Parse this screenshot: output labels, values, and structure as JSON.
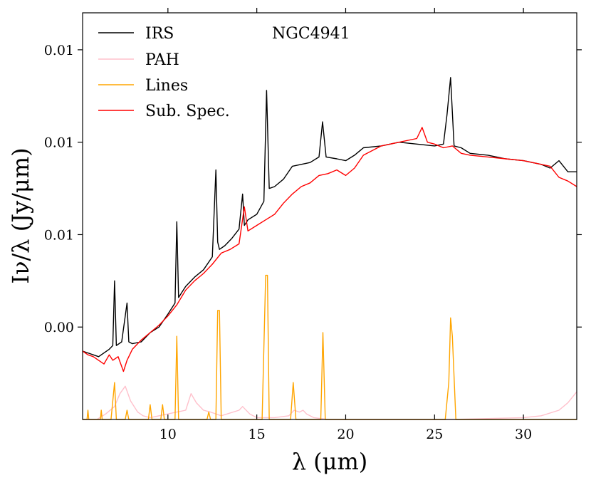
{
  "chart_data": {
    "type": "line",
    "title": "NGC4941",
    "xlabel": "λ (μm)",
    "ylabel": "Iν/λ (Jy/μm)",
    "xlim": [
      5.2,
      33.0
    ],
    "ylim": [
      -0.005,
      0.017
    ],
    "xticks": [
      10,
      15,
      20,
      25,
      30
    ],
    "yticks": [
      0.0,
      0.005,
      0.01,
      0.015
    ],
    "ytick_labels": [
      "0.00",
      "0.01",
      "0.01",
      "0.01"
    ],
    "legend": [
      "IRS",
      "PAH",
      "Lines",
      "Sub. Spec."
    ],
    "legend_position": "top-left",
    "colors": {
      "IRS": "#000000",
      "PAH": "#ffc0cb",
      "Lines": "#ffa500",
      "Sub. Spec.": "#ff0000"
    },
    "series": [
      {
        "name": "IRS",
        "x": [
          5.2,
          5.5,
          5.8,
          6.1,
          6.4,
          6.7,
          6.9,
          7.0,
          7.1,
          7.4,
          7.7,
          7.8,
          8.0,
          8.5,
          9.0,
          9.5,
          10.0,
          10.4,
          10.5,
          10.6,
          11.0,
          11.5,
          12.0,
          12.5,
          12.7,
          12.8,
          12.9,
          13.2,
          13.6,
          14.0,
          14.2,
          14.3,
          14.5,
          15.0,
          15.4,
          15.55,
          15.7,
          16.0,
          16.5,
          17.0,
          17.5,
          18.0,
          18.5,
          18.7,
          18.9,
          19.5,
          20.0,
          20.5,
          21.0,
          22.0,
          23.0,
          24.0,
          25.0,
          25.5,
          25.7,
          25.9,
          26.1,
          26.5,
          27.0,
          28.0,
          29.0,
          30.0,
          31.0,
          31.5,
          32.0,
          32.5,
          33.0
        ],
        "y": [
          -0.0013,
          -0.0014,
          -0.0015,
          -0.0016,
          -0.0014,
          -0.0012,
          -0.001,
          0.0025,
          -0.001,
          -0.0008,
          0.0013,
          -0.0008,
          -0.0009,
          -0.0008,
          -0.0003,
          0.0,
          0.0007,
          0.0013,
          0.0057,
          0.0016,
          0.0022,
          0.0027,
          0.0031,
          0.0038,
          0.0085,
          0.0046,
          0.0042,
          0.0044,
          0.0048,
          0.0053,
          0.0072,
          0.0055,
          0.0058,
          0.0061,
          0.0068,
          0.0128,
          0.0075,
          0.0076,
          0.008,
          0.0087,
          0.0088,
          0.0089,
          0.0092,
          0.0111,
          0.0092,
          0.0091,
          0.009,
          0.0093,
          0.0097,
          0.0098,
          0.01,
          0.0099,
          0.0098,
          0.0099,
          0.0115,
          0.0135,
          0.0098,
          0.0097,
          0.0094,
          0.0093,
          0.0091,
          0.009,
          0.0088,
          0.0086,
          0.009,
          0.0084,
          0.0084
        ]
      },
      {
        "name": "PAH",
        "x": [
          5.2,
          6.0,
          6.5,
          7.0,
          7.3,
          7.6,
          7.9,
          8.3,
          8.6,
          9.0,
          10.0,
          11.0,
          11.3,
          11.6,
          12.0,
          12.4,
          13.0,
          14.0,
          14.2,
          14.6,
          15.0,
          16.0,
          16.8,
          17.1,
          17.4,
          17.6,
          17.8,
          18.2,
          19.0,
          22.0,
          26.0,
          30.0,
          31.0,
          32.0,
          32.5,
          33.0
        ],
        "y": [
          -0.005,
          -0.005,
          -0.0047,
          -0.0043,
          -0.0036,
          -0.0032,
          -0.004,
          -0.0046,
          -0.0048,
          -0.0049,
          -0.0047,
          -0.0045,
          -0.0036,
          -0.0041,
          -0.0045,
          -0.0046,
          -0.0048,
          -0.0045,
          -0.0043,
          -0.0047,
          -0.0049,
          -0.0049,
          -0.0048,
          -0.0045,
          -0.0046,
          -0.0045,
          -0.0047,
          -0.0049,
          -0.005,
          -0.005,
          -0.005,
          -0.0049,
          -0.0048,
          -0.0045,
          -0.0041,
          -0.0035
        ]
      },
      {
        "name": "Lines",
        "x": [
          5.2,
          5.45,
          5.5,
          5.55,
          6.2,
          6.25,
          6.3,
          6.8,
          6.9,
          7.0,
          7.1,
          7.6,
          7.7,
          7.8,
          8.9,
          9.0,
          9.1,
          9.6,
          9.7,
          9.8,
          10.4,
          10.5,
          10.6,
          12.2,
          12.3,
          12.4,
          12.7,
          12.8,
          12.9,
          13.0,
          15.3,
          15.5,
          15.6,
          15.7,
          16.9,
          17.05,
          17.2,
          18.6,
          18.72,
          18.85,
          25.6,
          25.8,
          25.9,
          26.0,
          26.2,
          33.0
        ],
        "y": [
          -0.005,
          -0.005,
          -0.0045,
          -0.005,
          -0.005,
          -0.0045,
          -0.005,
          -0.005,
          -0.004,
          -0.003,
          -0.005,
          -0.005,
          -0.0045,
          -0.005,
          -0.005,
          -0.0042,
          -0.005,
          -0.005,
          -0.0042,
          -0.005,
          -0.005,
          -0.0005,
          -0.005,
          -0.005,
          -0.0046,
          -0.005,
          -0.005,
          0.0009,
          0.0009,
          -0.005,
          -0.005,
          0.0028,
          0.0028,
          -0.005,
          -0.005,
          -0.003,
          -0.005,
          -0.005,
          -0.0003,
          -0.005,
          -0.005,
          -0.003,
          0.0005,
          -0.0005,
          -0.005,
          -0.005
        ]
      },
      {
        "name": "Sub. Spec.",
        "x": [
          5.2,
          5.5,
          5.8,
          6.1,
          6.4,
          6.7,
          6.9,
          7.2,
          7.5,
          7.7,
          8.0,
          8.5,
          9.0,
          9.5,
          10.0,
          10.5,
          11.0,
          11.5,
          12.0,
          12.5,
          13.0,
          13.5,
          14.0,
          14.3,
          14.5,
          15.0,
          15.5,
          16.0,
          16.5,
          17.0,
          17.5,
          18.0,
          18.5,
          19.0,
          19.5,
          20.0,
          20.5,
          21.0,
          22.0,
          23.0,
          24.0,
          24.3,
          24.6,
          25.0,
          25.5,
          26.0,
          26.5,
          27.0,
          28.0,
          29.0,
          30.0,
          31.0,
          31.5,
          32.0,
          32.5,
          33.0
        ],
        "y": [
          -0.0013,
          -0.0015,
          -0.0016,
          -0.0018,
          -0.002,
          -0.0015,
          -0.0018,
          -0.0016,
          -0.0024,
          -0.0018,
          -0.0012,
          -0.0007,
          -0.0003,
          0.0001,
          0.0006,
          0.0012,
          0.002,
          0.0025,
          0.0029,
          0.0034,
          0.004,
          0.0042,
          0.0045,
          0.0065,
          0.0052,
          0.0055,
          0.0058,
          0.0061,
          0.0067,
          0.0072,
          0.0076,
          0.0078,
          0.0082,
          0.0083,
          0.0085,
          0.0082,
          0.0086,
          0.0093,
          0.0098,
          0.01,
          0.0102,
          0.0108,
          0.01,
          0.0099,
          0.0097,
          0.0098,
          0.0094,
          0.0093,
          0.0092,
          0.0091,
          0.009,
          0.0088,
          0.0087,
          0.0081,
          0.0079,
          0.0076
        ]
      }
    ]
  }
}
